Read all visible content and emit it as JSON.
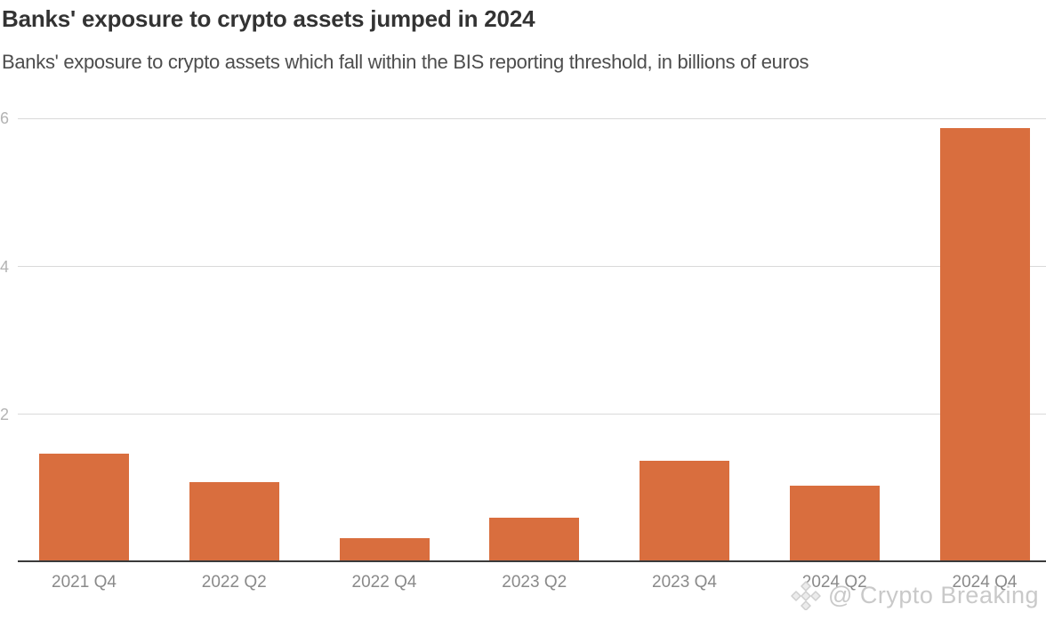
{
  "header": {
    "title": "Banks' exposure to crypto assets jumped in 2024",
    "subtitle": "Banks' exposure to crypto assets which fall within the BIS reporting threshold, in billions of euros"
  },
  "watermark": {
    "icon": "binance-diamond-logo",
    "text": "@ Crypto Breaking"
  },
  "chart_data": {
    "type": "bar",
    "title": "Banks' exposure to crypto assets jumped in 2024",
    "subtitle": "Banks' exposure to crypto assets which fall within the BIS reporting threshold, in billions of euros",
    "categories": [
      "2021 Q4",
      "2022 Q2",
      "2022 Q4",
      "2023 Q2",
      "2023 Q4",
      "2024 Q2",
      "2024 Q4"
    ],
    "values": [
      1.47,
      1.08,
      0.33,
      0.6,
      1.37,
      1.03,
      5.87
    ],
    "xlabel": "",
    "ylabel": "billions of euros",
    "yticks": [
      2,
      4,
      6
    ],
    "ylim": [
      0,
      6.4
    ],
    "grid": true,
    "legend": false,
    "bar_color": "#d96e3e",
    "colors": {
      "bar": "#d96e3e",
      "axis_line": "#3a3a3a",
      "gridline": "#d9d9d9",
      "y_tick_label": "#b3b3b3",
      "x_tick_label": "#8a8a8a",
      "title": "#333333",
      "subtitle": "#4d4d4d",
      "watermark": "#c9c9c9",
      "background": "#ffffff"
    }
  }
}
